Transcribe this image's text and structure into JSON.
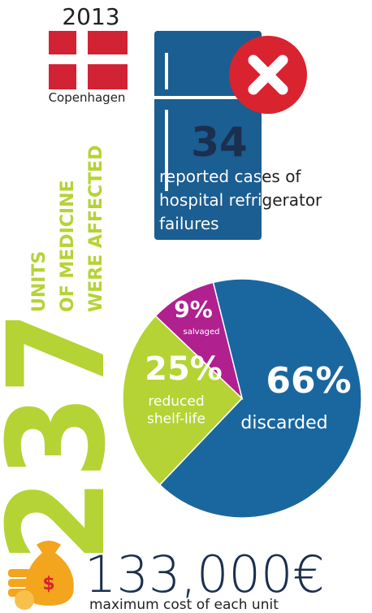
{
  "year": "2013",
  "city": "Copenhagen",
  "failures": {
    "value": "34",
    "text": [
      "reported cases of",
      "hospital refrigerator",
      "failures"
    ]
  },
  "units": {
    "value": "237",
    "text": [
      "UNITS",
      "OF MEDICINE",
      "WERE AFFECTED"
    ]
  },
  "chart_data": {
    "type": "pie",
    "categories": [
      "discarded",
      "reduced shelf-life",
      "salvaged"
    ],
    "values": [
      66,
      25,
      9
    ],
    "value_labels": [
      "66%",
      "25%",
      "9%"
    ],
    "colors": [
      "#1a679f",
      "#b5d334",
      "#b0208f"
    ]
  },
  "cost": {
    "value": "133,000€",
    "label": "maximum cost of each unit"
  }
}
